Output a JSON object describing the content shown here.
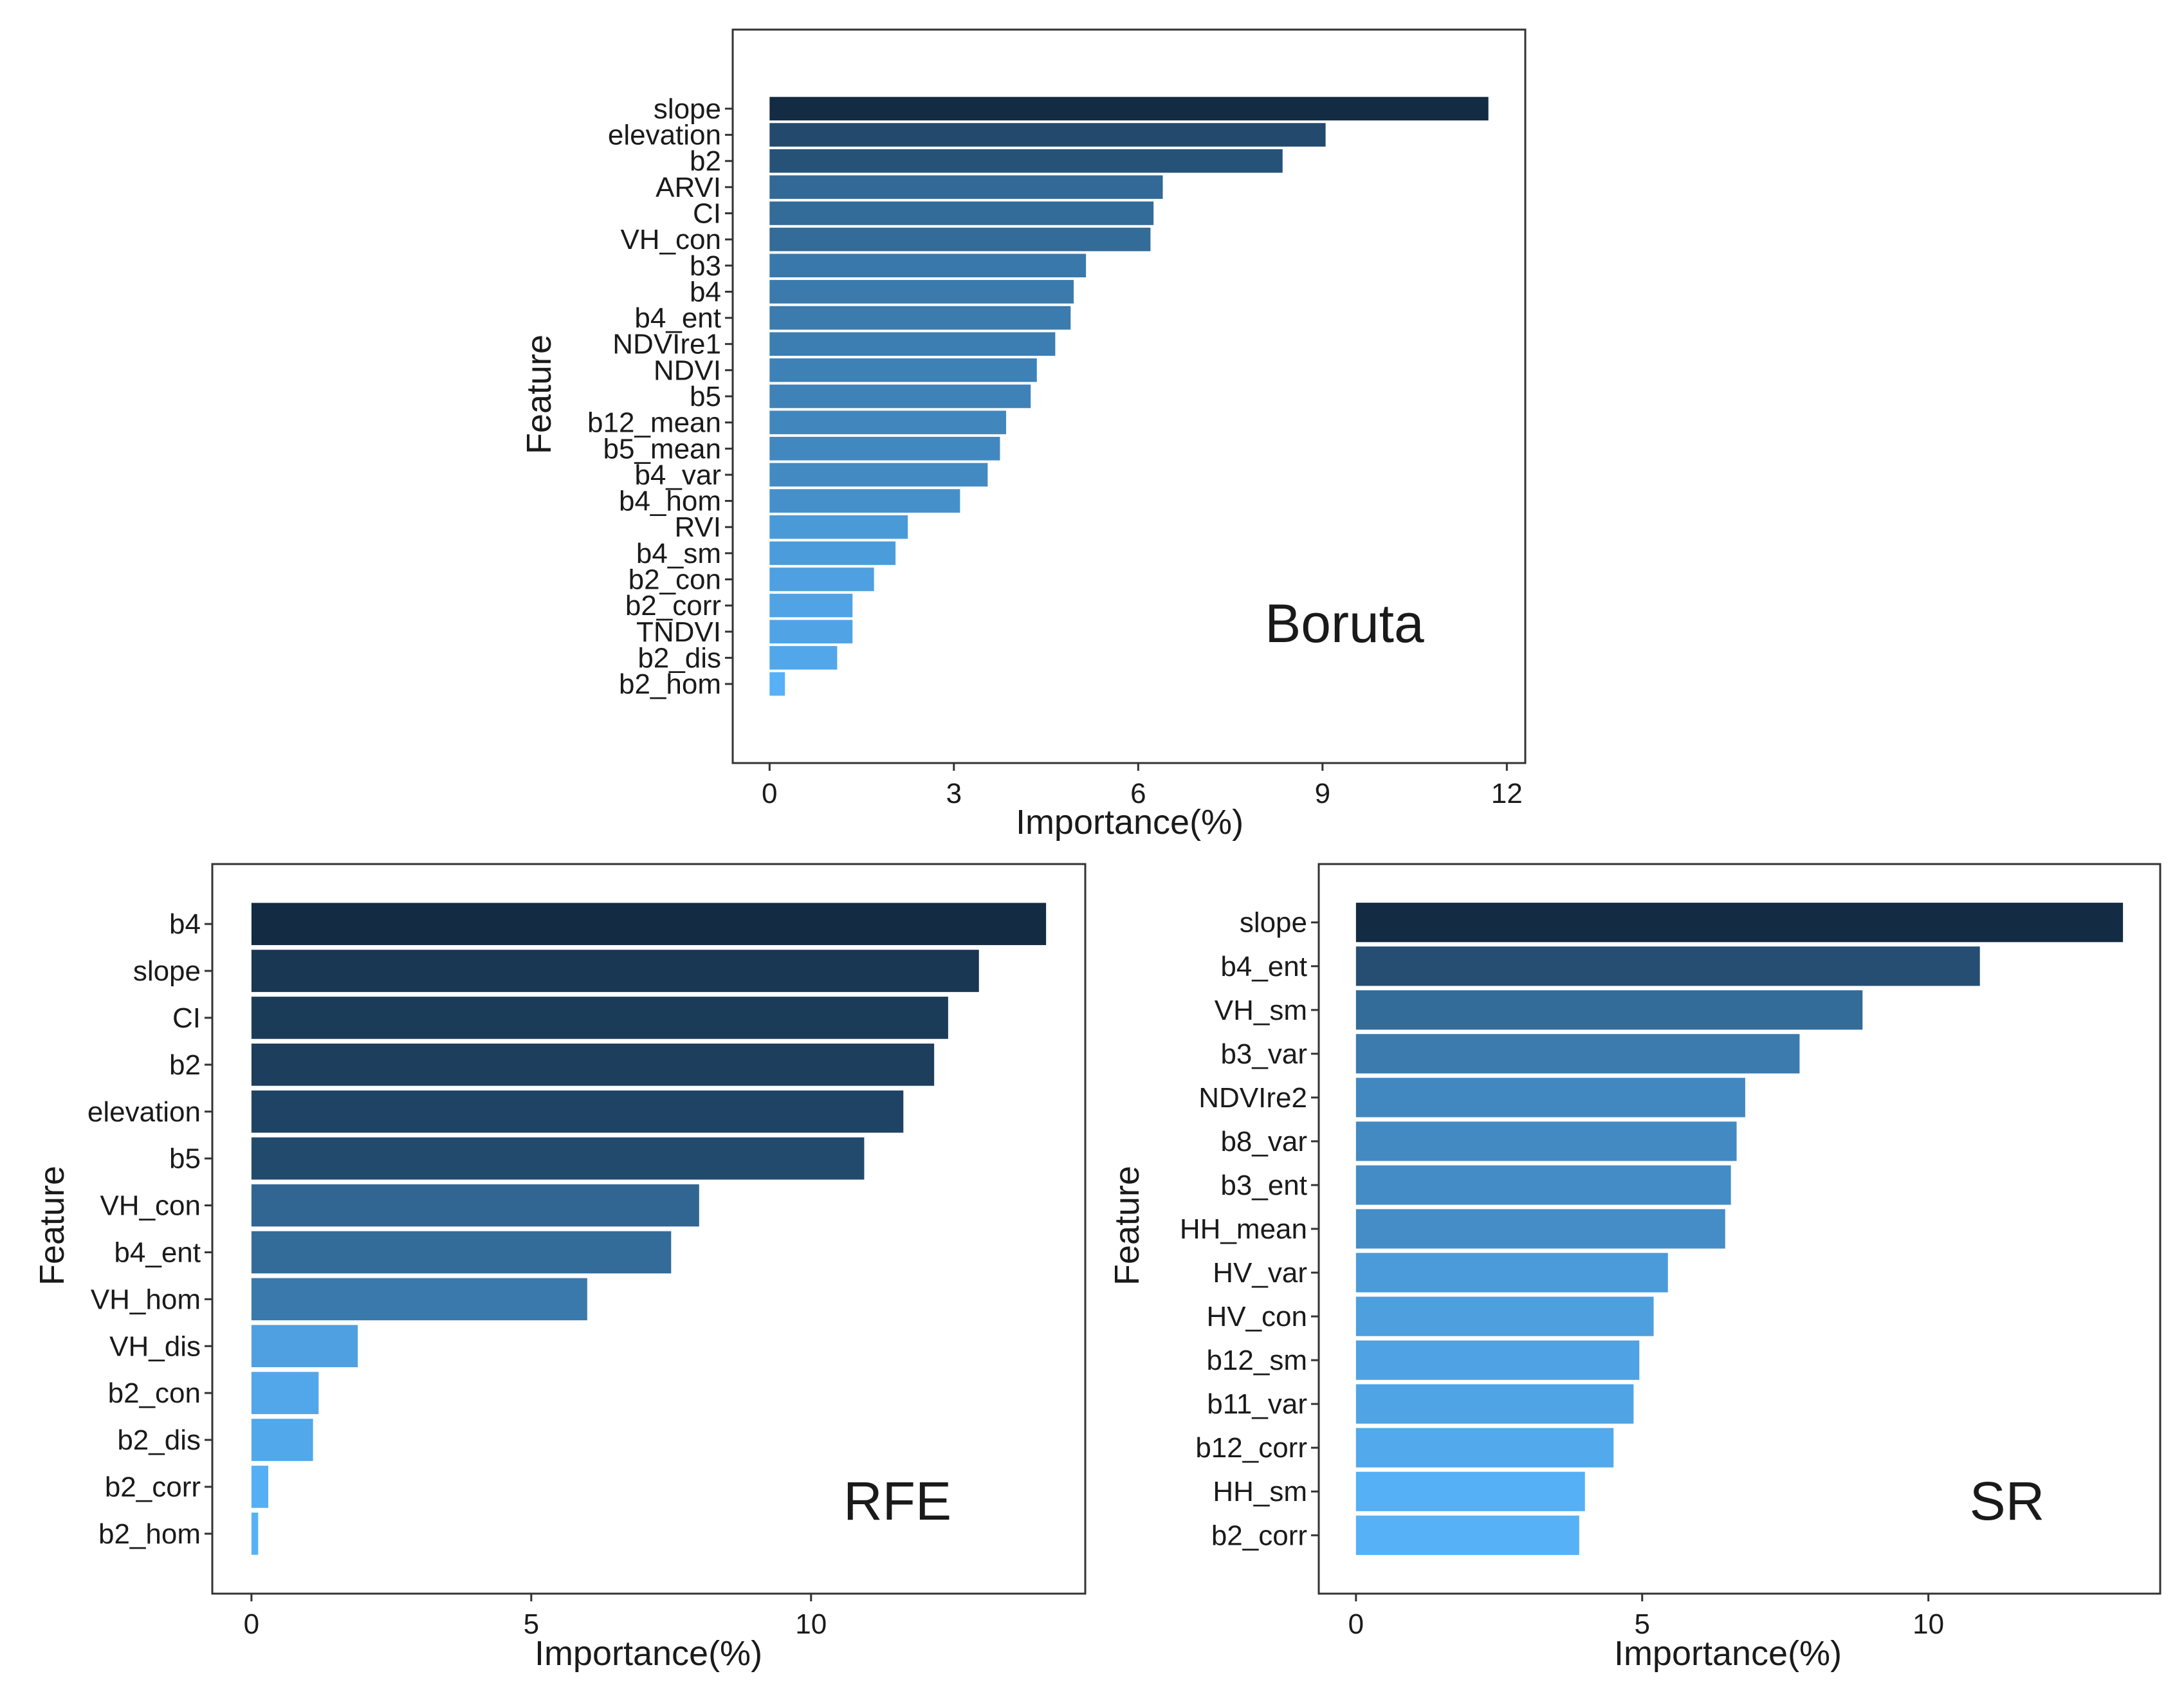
{
  "colors": {
    "bar_dark": "#132B43",
    "bar_light": "#56B1F7",
    "frame": "#333333",
    "text": "#1a1a1a"
  },
  "chart_data": [
    {
      "type": "bar",
      "orientation": "horizontal",
      "panel_label": "Boruta",
      "xlabel": "Importance(%)",
      "ylabel": "Feature",
      "xlim": [
        -0.6,
        12.3
      ],
      "xticks": [
        0,
        3,
        6,
        9,
        12
      ],
      "categories": [
        "slope",
        "elevation",
        "b2",
        "ARVI",
        "CI",
        "VH_con",
        "b3",
        "b4",
        "b4_ent",
        "NDVIre1",
        "NDVI",
        "b5",
        "b12_mean",
        "b5_mean",
        "b4_var",
        "b4_hom",
        "RVI",
        "b4_sm",
        "b2_con",
        "b2_corr",
        "TNDVI",
        "b2_dis",
        "b2_hom"
      ],
      "values": [
        11.7,
        9.05,
        8.35,
        6.4,
        6.25,
        6.2,
        5.15,
        4.95,
        4.9,
        4.65,
        4.35,
        4.25,
        3.85,
        3.75,
        3.55,
        3.1,
        2.25,
        2.05,
        1.7,
        1.35,
        1.35,
        1.1,
        0.25
      ],
      "grid": false
    },
    {
      "type": "bar",
      "orientation": "horizontal",
      "panel_label": "RFE",
      "xlabel": "Importance(%)",
      "ylabel": "Feature",
      "xlim": [
        -0.7,
        14.9
      ],
      "xticks": [
        0,
        5,
        10
      ],
      "categories": [
        "b4",
        "slope",
        "CI",
        "b2",
        "elevation",
        "b5",
        "VH_con",
        "b4_ent",
        "VH_hom",
        "VH_dis",
        "b2_con",
        "b2_dis",
        "b2_corr",
        "b2_hom"
      ],
      "values": [
        14.2,
        13.0,
        12.45,
        12.2,
        11.65,
        10.95,
        8.0,
        7.5,
        6.0,
        1.9,
        1.2,
        1.1,
        0.3,
        0.12
      ],
      "grid": false
    },
    {
      "type": "bar",
      "orientation": "horizontal",
      "panel_label": "SR",
      "xlabel": "Importance(%)",
      "ylabel": "Feature",
      "xlim": [
        -0.65,
        14.05
      ],
      "xticks": [
        0,
        5,
        10
      ],
      "categories": [
        "slope",
        "b4_ent",
        "VH_sm",
        "b3_var",
        "NDVIre2",
        "b8_var",
        "b3_ent",
        "HH_mean",
        "HV_var",
        "HV_con",
        "b12_sm",
        "b11_var",
        "b12_corr",
        "HH_sm",
        "b2_corr"
      ],
      "values": [
        13.4,
        10.9,
        8.85,
        7.75,
        6.8,
        6.65,
        6.55,
        6.45,
        5.45,
        5.2,
        4.95,
        4.85,
        4.5,
        4.0,
        3.9
      ],
      "grid": false
    }
  ]
}
